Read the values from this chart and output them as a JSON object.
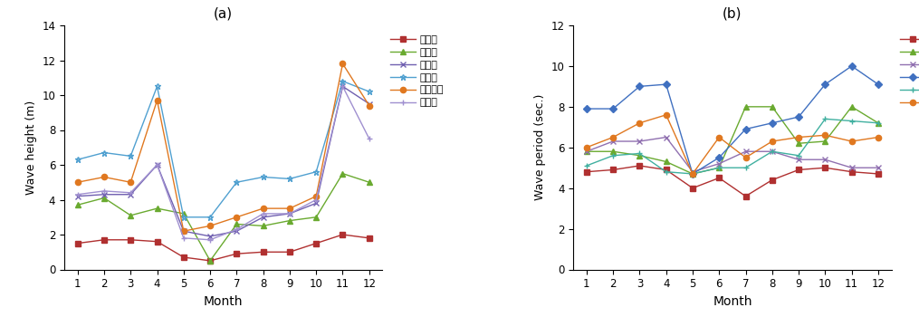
{
  "months": [
    1,
    2,
    3,
    4,
    5,
    6,
    7,
    8,
    9,
    10,
    11,
    12
  ],
  "title_a": "(a)",
  "title_b": "(b)",
  "xlabel": "Month",
  "ylabel_a": "Wave height (m)",
  "ylabel_b": "Wave period (sec.)",
  "ylim_a": [
    0,
    14
  ],
  "ylim_b": [
    0,
    12
  ],
  "yticks_a": [
    0,
    2,
    4,
    6,
    8,
    10,
    12,
    14
  ],
  "yticks_b": [
    0,
    2,
    4,
    6,
    8,
    10,
    12
  ],
  "locations": [
    "서수도",
    "덕적도",
    "가대암",
    "외연도",
    "상이등파",
    "갈매여"
  ],
  "colors_a": [
    "#b03030",
    "#6aaa30",
    "#7060b0",
    "#50a0d0",
    "#e07820",
    "#a090d0"
  ],
  "colors_b": [
    "#b03030",
    "#6aaa30",
    "#9070b0",
    "#4070c0",
    "#40b0a0",
    "#e07820"
  ],
  "markers_a": [
    "s",
    "^",
    "x",
    "*",
    "o",
    "+"
  ],
  "markers_b": [
    "s",
    "^",
    "x",
    "D",
    "+",
    "o"
  ],
  "wave_height": {
    "서수도": [
      1.5,
      1.7,
      1.7,
      1.6,
      0.7,
      0.5,
      0.9,
      1.0,
      1.0,
      1.5,
      2.0,
      1.8
    ],
    "덕적도": [
      3.7,
      4.1,
      3.1,
      3.5,
      3.2,
      0.5,
      2.6,
      2.5,
      2.8,
      3.0,
      5.5,
      5.0
    ],
    "가대암": [
      4.2,
      4.3,
      4.3,
      6.0,
      2.2,
      1.9,
      2.2,
      3.0,
      3.2,
      3.8,
      10.5,
      9.5
    ],
    "외연도": [
      6.3,
      6.7,
      6.5,
      10.5,
      3.0,
      3.0,
      5.0,
      5.3,
      5.2,
      5.6,
      10.8,
      10.2
    ],
    "상이등파": [
      5.0,
      5.3,
      5.0,
      9.7,
      2.2,
      2.5,
      3.0,
      3.5,
      3.5,
      4.2,
      11.8,
      9.4
    ],
    "갈매여": [
      4.3,
      4.5,
      4.4,
      6.0,
      1.8,
      1.7,
      2.3,
      3.2,
      3.2,
      4.0,
      10.5,
      7.5
    ]
  },
  "wave_period": {
    "서수도": [
      4.8,
      4.9,
      5.1,
      4.9,
      4.0,
      4.5,
      3.6,
      4.4,
      4.9,
      5.0,
      4.8,
      4.7
    ],
    "덕적도": [
      5.8,
      5.8,
      5.6,
      5.3,
      4.7,
      5.0,
      8.0,
      8.0,
      6.2,
      6.3,
      8.0,
      7.2
    ],
    "가대암": [
      5.8,
      6.3,
      6.3,
      6.5,
      4.8,
      5.2,
      5.8,
      5.8,
      5.4,
      5.4,
      5.0,
      5.0
    ],
    "외연도": [
      7.9,
      7.9,
      9.0,
      9.1,
      4.7,
      5.5,
      6.9,
      7.2,
      7.5,
      9.1,
      10.0,
      9.1
    ],
    "상이등파": [
      5.1,
      5.6,
      5.7,
      4.8,
      4.7,
      5.0,
      5.0,
      5.8,
      5.6,
      7.4,
      7.3,
      7.2
    ],
    "갈매여": [
      6.0,
      6.5,
      7.2,
      7.6,
      4.7,
      6.5,
      5.5,
      6.3,
      6.5,
      6.6,
      6.3,
      6.5
    ]
  }
}
